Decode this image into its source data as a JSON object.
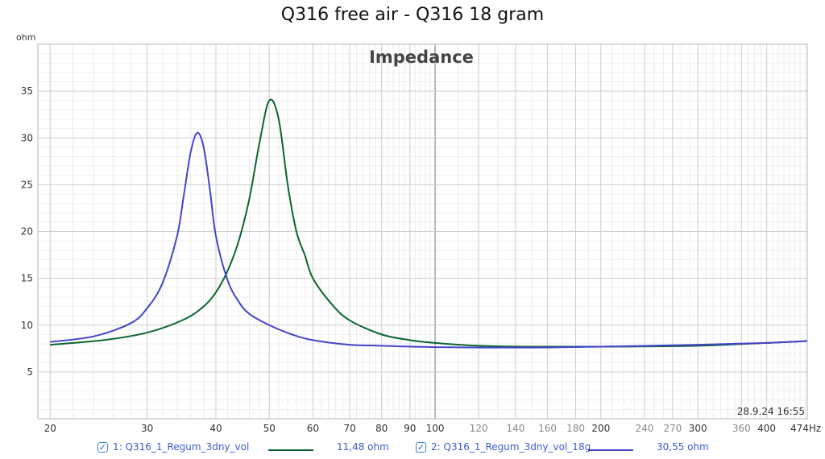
{
  "title": "Q316 free air - Q316 18 gram",
  "timestamp": "28.9.24 16:55",
  "chart_data": {
    "type": "line",
    "title": "Impedance",
    "ylabel": "ohm",
    "xlabel": "",
    "x_scale": "log",
    "xlim": [
      19,
      474
    ],
    "ylim": [
      0,
      40
    ],
    "x_ticks": [
      20,
      30,
      40,
      50,
      60,
      70,
      80,
      90,
      100,
      120,
      140,
      160,
      180,
      200,
      240,
      270,
      300,
      360,
      400
    ],
    "x_tick_labels": [
      "20",
      "30",
      "40",
      "50",
      "60",
      "70",
      "80",
      "90",
      "100",
      "120",
      "140",
      "160",
      "180",
      "200",
      "240",
      "270",
      "300",
      "360",
      "400"
    ],
    "x_end_label": "474Hz",
    "y_ticks": [
      5,
      10,
      15,
      20,
      25,
      30,
      35
    ],
    "y_tick_labels": [
      "5",
      "10",
      "15",
      "20",
      "25",
      "30",
      "35"
    ],
    "grid": true,
    "series": [
      {
        "name": "1: Q316_1_Regum_3dny_vol",
        "value_label": "11,48 ohm",
        "color": "#0a6630",
        "x": [
          20,
          25,
          30,
          35,
          38,
          40,
          42,
          44,
          46,
          48,
          50,
          52,
          54,
          56,
          58,
          60,
          65,
          70,
          80,
          90,
          100,
          120,
          150,
          200,
          300,
          400,
          474
        ],
        "y": [
          7.9,
          8.4,
          9.2,
          10.6,
          12.0,
          13.5,
          15.8,
          19.0,
          23.5,
          29.5,
          34.0,
          32.0,
          25.0,
          20.0,
          17.5,
          15.0,
          12.2,
          10.5,
          9.0,
          8.4,
          8.1,
          7.8,
          7.7,
          7.7,
          7.8,
          8.1,
          8.3
        ]
      },
      {
        "name": "2: Q316_1_Regum_3dny_vol_18g",
        "value_label": "30,55 ohm",
        "color": "#4444cc",
        "x": [
          20,
          24,
          28,
          30,
          32,
          34,
          35,
          36,
          37,
          38,
          39,
          40,
          42,
          44,
          46,
          50,
          55,
          60,
          70,
          80,
          100,
          150,
          200,
          300,
          400,
          474
        ],
        "y": [
          8.2,
          8.8,
          10.2,
          11.8,
          14.5,
          19.5,
          24.0,
          28.5,
          30.55,
          29.0,
          24.5,
          19.5,
          14.8,
          12.5,
          11.2,
          10.0,
          9.0,
          8.4,
          7.9,
          7.8,
          7.65,
          7.6,
          7.7,
          7.9,
          8.1,
          8.3
        ]
      }
    ]
  },
  "legend": {
    "items": [
      {
        "checkbox": "☑",
        "label": "1: Q316_1_Regum_3dny_vol",
        "value": "11,48 ohm",
        "color": "#0a6630"
      },
      {
        "checkbox": "☑",
        "label": "2: Q316_1_Regum_3dny_vol_18g",
        "value": "30,55 ohm",
        "color": "#4444cc"
      }
    ]
  }
}
